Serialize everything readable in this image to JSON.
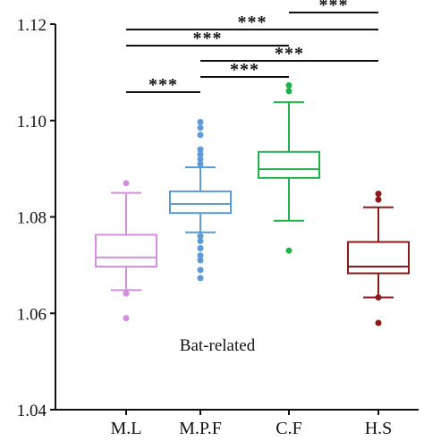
{
  "chart_data": {
    "type": "box",
    "title": "",
    "xlabel": "",
    "ylabel": "",
    "annotation": "Bat-related",
    "ylim": [
      1.04,
      1.12
    ],
    "yticks": [
      1.04,
      1.06,
      1.08,
      1.1,
      1.12
    ],
    "ytick_labels": [
      "1.04",
      "1.06",
      "1.08",
      "1.10",
      "1.12"
    ],
    "categories": [
      "M.L",
      "M.P.F",
      "C.F",
      "H.S"
    ],
    "boxes": [
      {
        "name": "M.L",
        "color": "#d68ee0",
        "whisker_low": 1.0648,
        "q1": 1.0697,
        "median": 1.0716,
        "q3": 1.0763,
        "whisker_high": 1.085,
        "outliers": [
          1.087,
          1.0641,
          1.059
        ]
      },
      {
        "name": "M.P.F",
        "color": "#5b9bd8",
        "whisker_low": 1.0768,
        "q1": 1.0808,
        "median": 1.0827,
        "q3": 1.0853,
        "whisker_high": 1.0903,
        "outliers": [
          1.0997,
          1.0985,
          1.097,
          1.094,
          1.093,
          1.092,
          1.091,
          1.076,
          1.075,
          1.0735,
          1.072,
          1.071,
          1.069,
          1.0673
        ]
      },
      {
        "name": "C.F",
        "color": "#22b14c",
        "whisker_low": 1.0792,
        "q1": 1.0881,
        "median": 1.0899,
        "q3": 1.0935,
        "whisker_high": 1.1038,
        "outliers": [
          1.1073,
          1.1061,
          1.073
        ]
      },
      {
        "name": "H.S",
        "color": "#8b1a1a",
        "whisker_low": 1.0633,
        "q1": 1.0683,
        "median": 1.0697,
        "q3": 1.0748,
        "whisker_high": 1.082,
        "outliers": [
          1.0848,
          1.0836,
          1.0633,
          1.058
        ]
      }
    ],
    "significance": [
      {
        "from": "M.L",
        "to": "M.P.F",
        "label": "***"
      },
      {
        "from": "M.L",
        "to": "C.F",
        "label": "***"
      },
      {
        "from": "M.L",
        "to": "H.S",
        "label": "***"
      },
      {
        "from": "M.P.F",
        "to": "C.F",
        "label": "***"
      },
      {
        "from": "M.P.F",
        "to": "H.S",
        "label": "***"
      },
      {
        "from": "C.F",
        "to": "H.S",
        "label": "***"
      }
    ]
  }
}
